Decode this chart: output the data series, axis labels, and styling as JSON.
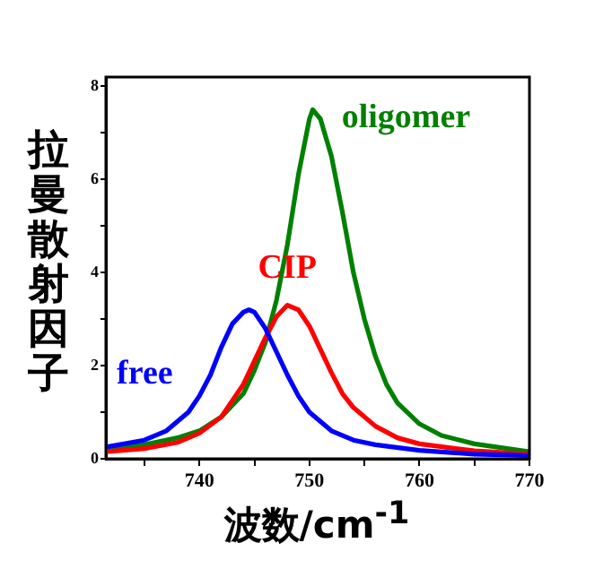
{
  "chart_data": {
    "type": "line",
    "xlabel": "波数/cm$^{-1}$",
    "ylabel": "拉曼散射因子",
    "xlim": [
      731.5,
      770
    ],
    "ylim": [
      0,
      8.2
    ],
    "xticks": [
      {
        "value": 735,
        "label": null
      },
      740,
      {
        "value": 745,
        "label": null
      },
      750,
      {
        "value": 755,
        "label": null
      },
      760,
      {
        "value": 765,
        "label": null
      },
      770
    ],
    "yticks": [
      0,
      {
        "value": 1,
        "label": null
      },
      2,
      {
        "value": 3,
        "label": null
      },
      4,
      {
        "value": 5,
        "label": null
      },
      6,
      {
        "value": 7,
        "label": null
      },
      8
    ],
    "grid": false,
    "legend": false,
    "marker": "none",
    "line_style": "solid",
    "series": [
      {
        "name": "free",
        "color": "#0000ff",
        "x": [
          731.5,
          735,
          737,
          739,
          740,
          741,
          742,
          743,
          744,
          744.5,
          745,
          746,
          747,
          748,
          749,
          750,
          752,
          754,
          756,
          760,
          765,
          770
        ],
        "values": [
          0.25,
          0.4,
          0.6,
          1.0,
          1.35,
          1.8,
          2.4,
          2.9,
          3.15,
          3.2,
          3.15,
          2.8,
          2.3,
          1.8,
          1.35,
          1.0,
          0.6,
          0.4,
          0.3,
          0.18,
          0.1,
          0.07
        ]
      },
      {
        "name": "CIP",
        "color": "#ff0000",
        "x": [
          731.5,
          735,
          738,
          740,
          742,
          744,
          745,
          746,
          747,
          748,
          749,
          750,
          751,
          752,
          753,
          754,
          756,
          758,
          760,
          765,
          770
        ],
        "values": [
          0.15,
          0.22,
          0.35,
          0.55,
          0.9,
          1.6,
          2.1,
          2.6,
          3.05,
          3.3,
          3.2,
          2.85,
          2.35,
          1.85,
          1.4,
          1.1,
          0.7,
          0.45,
          0.32,
          0.17,
          0.1
        ]
      },
      {
        "name": "oligomer",
        "color": "#008000",
        "x": [
          731.5,
          735,
          738,
          740,
          742,
          744,
          745,
          746,
          747,
          748,
          749,
          750,
          750.3,
          751,
          752,
          753,
          754,
          755,
          756,
          757,
          758,
          760,
          762,
          765,
          770
        ],
        "values": [
          0.2,
          0.3,
          0.45,
          0.6,
          0.9,
          1.4,
          1.9,
          2.5,
          3.4,
          4.6,
          6.1,
          7.3,
          7.5,
          7.3,
          6.5,
          5.3,
          4.0,
          3.0,
          2.2,
          1.6,
          1.2,
          0.75,
          0.5,
          0.32,
          0.15
        ]
      }
    ]
  }
}
